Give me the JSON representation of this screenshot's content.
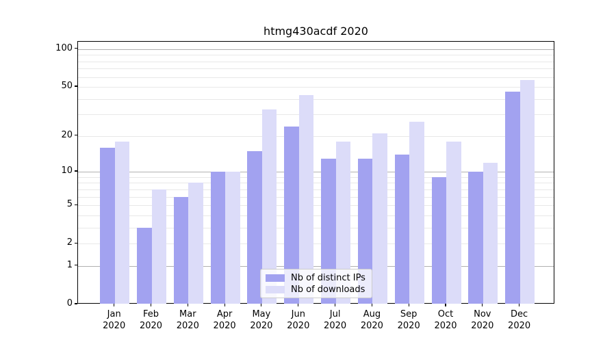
{
  "figure": {
    "background": "#ffffff"
  },
  "chart_data": {
    "type": "bar",
    "title": "htmg430acdf 2020",
    "xlabel": "",
    "ylabel": "",
    "y_scale": "log1p",
    "ylim": [
      0,
      115
    ],
    "grid": true,
    "categories": [
      "Jan 2020",
      "Feb 2020",
      "Mar 2020",
      "Apr 2020",
      "May 2020",
      "Jun 2020",
      "Jul 2020",
      "Aug 2020",
      "Sep 2020",
      "Oct 2020",
      "Nov 2020",
      "Dec 2020"
    ],
    "series": [
      {
        "name": "Nb of distinct IPs",
        "color": "#a2a2f0",
        "values": [
          16,
          3,
          6,
          10,
          15,
          24,
          13,
          13,
          14,
          9,
          10,
          46
        ]
      },
      {
        "name": "Nb of downloads",
        "color": "#dcdcf9",
        "values": [
          18,
          7,
          8,
          10,
          33,
          43,
          18,
          21,
          26,
          18,
          12,
          57
        ]
      }
    ],
    "yticks": [
      0,
      1,
      2,
      5,
      10,
      20,
      50,
      100
    ],
    "major_gridline_values": [
      1,
      10,
      100
    ],
    "minor_gridline_values": [
      2,
      3,
      4,
      5,
      6,
      7,
      8,
      9,
      20,
      30,
      40,
      50,
      60,
      70,
      80,
      90
    ],
    "legend": {
      "position": "lower-center"
    },
    "colors": {
      "grid_major": "#b0b0b0",
      "grid_minor": "#e8e8e8",
      "axis": "#000000",
      "text": "#000000",
      "legend_border": "#cccccc"
    }
  }
}
